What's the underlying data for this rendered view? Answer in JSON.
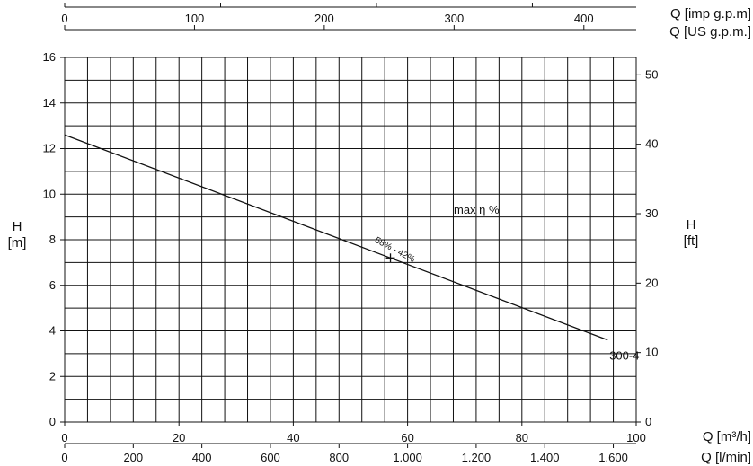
{
  "chart_data": {
    "type": "line",
    "title": "",
    "grid": true,
    "x_axis_bottom_primary": {
      "label": "Q [m³/h]",
      "range": [
        0,
        100
      ],
      "tick_labels": [
        "0",
        "20",
        "40",
        "60",
        "80",
        "100"
      ]
    },
    "x_axis_bottom_secondary": {
      "label": "Q [l/min]",
      "range": [
        0,
        1666.7
      ],
      "tick_labels": [
        "0",
        "200",
        "400",
        "600",
        "800",
        "1.000",
        "1.200",
        "1.400",
        "1.600"
      ]
    },
    "x_axis_top_1": {
      "label": "Q [imp g.p.m]",
      "range": [
        0,
        366.6
      ],
      "tick_labels": [
        "0",
        "100",
        "200",
        "300"
      ]
    },
    "x_axis_top_2": {
      "label": "Q [US g.p.m.]",
      "range": [
        0,
        440.3
      ],
      "tick_labels": [
        "0",
        "100",
        "200",
        "300",
        "400"
      ]
    },
    "y_axis_left": {
      "label_line1": "H",
      "label_line2": "[m]",
      "range": [
        0,
        16
      ],
      "tick_labels": [
        "0",
        "2",
        "4",
        "6",
        "8",
        "10",
        "12",
        "14",
        "16"
      ]
    },
    "y_axis_right": {
      "label_line1": "H",
      "label_line2": "[ft]",
      "range": [
        0,
        52.5
      ],
      "tick_labels": [
        "0",
        "10",
        "20",
        "30",
        "40",
        "50"
      ]
    },
    "series": [
      {
        "name": "300-4",
        "x": [
          0,
          57,
          95
        ],
        "y": [
          12.6,
          7.2,
          3.6
        ]
      }
    ],
    "operating_point": {
      "x": 57,
      "y": 7.2,
      "label": "58% - 42%"
    },
    "annotation": "max η %",
    "series_label_text": "300-4"
  },
  "colors": {
    "grid": "#111111",
    "curve": "#111111",
    "text": "#111111"
  }
}
